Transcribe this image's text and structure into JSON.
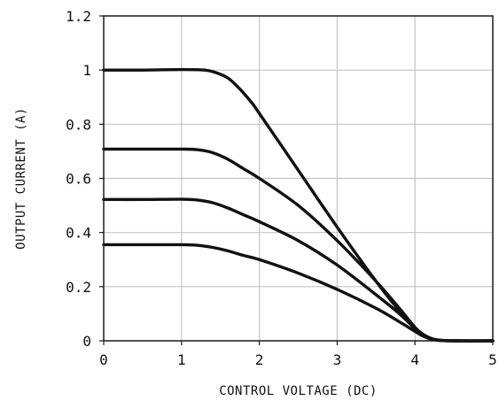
{
  "chart_data": {
    "type": "line",
    "title": "",
    "xlabel": "CONTROL VOLTAGE (DC)",
    "ylabel": "OUTPUT CURRENT (A)",
    "xlim": [
      0,
      5
    ],
    "ylim": [
      0,
      1.2
    ],
    "xticks": [
      0,
      1,
      2,
      3,
      4,
      5
    ],
    "xtick_labels": [
      "0",
      "1",
      "2",
      "3",
      "4",
      "5"
    ],
    "yticks": [
      0,
      0.2,
      0.4,
      0.6,
      0.8,
      1.0,
      1.2
    ],
    "ytick_labels": [
      "0",
      "0.2",
      "0.4",
      "0.6",
      "0.8",
      "1",
      "1.2"
    ],
    "grid": true,
    "legend": "none",
    "line_color": "#111111",
    "series": [
      {
        "x": [
          0,
          0.5,
          1.0,
          1.3,
          1.45,
          1.6,
          1.75,
          1.9,
          2.0,
          2.5,
          3.0,
          3.5,
          3.8,
          4.0,
          4.1,
          4.2,
          4.3,
          4.5,
          5.0
        ],
        "values": [
          1.0,
          1.0,
          1.002,
          1.0,
          0.99,
          0.97,
          0.93,
          0.88,
          0.84,
          0.63,
          0.42,
          0.22,
          0.11,
          0.045,
          0.02,
          0.007,
          0.002,
          0.0,
          0.0
        ]
      },
      {
        "x": [
          0,
          0.5,
          1.0,
          1.2,
          1.4,
          1.6,
          1.8,
          2.0,
          2.5,
          3.0,
          3.5,
          3.8,
          4.0,
          4.1,
          4.2,
          4.3,
          4.5,
          5.0
        ],
        "values": [
          0.708,
          0.708,
          0.708,
          0.706,
          0.695,
          0.67,
          0.635,
          0.6,
          0.5,
          0.37,
          0.22,
          0.12,
          0.05,
          0.025,
          0.01,
          0.003,
          0.0,
          0.0
        ]
      },
      {
        "x": [
          0,
          0.5,
          1.0,
          1.2,
          1.4,
          1.6,
          1.8,
          2.0,
          2.5,
          3.0,
          3.5,
          3.8,
          4.0,
          4.1,
          4.2,
          4.3,
          4.5,
          5.0
        ],
        "values": [
          0.522,
          0.522,
          0.523,
          0.52,
          0.51,
          0.49,
          0.465,
          0.44,
          0.37,
          0.28,
          0.17,
          0.1,
          0.045,
          0.022,
          0.008,
          0.002,
          0.0,
          0.0
        ]
      },
      {
        "x": [
          0,
          0.5,
          1.0,
          1.2,
          1.4,
          1.6,
          1.8,
          2.0,
          2.5,
          3.0,
          3.5,
          3.8,
          4.0,
          4.1,
          4.2,
          4.3,
          4.5,
          5.0
        ],
        "values": [
          0.355,
          0.355,
          0.355,
          0.353,
          0.345,
          0.332,
          0.315,
          0.3,
          0.25,
          0.19,
          0.12,
          0.07,
          0.035,
          0.018,
          0.007,
          0.002,
          0.0,
          0.0
        ]
      }
    ]
  }
}
